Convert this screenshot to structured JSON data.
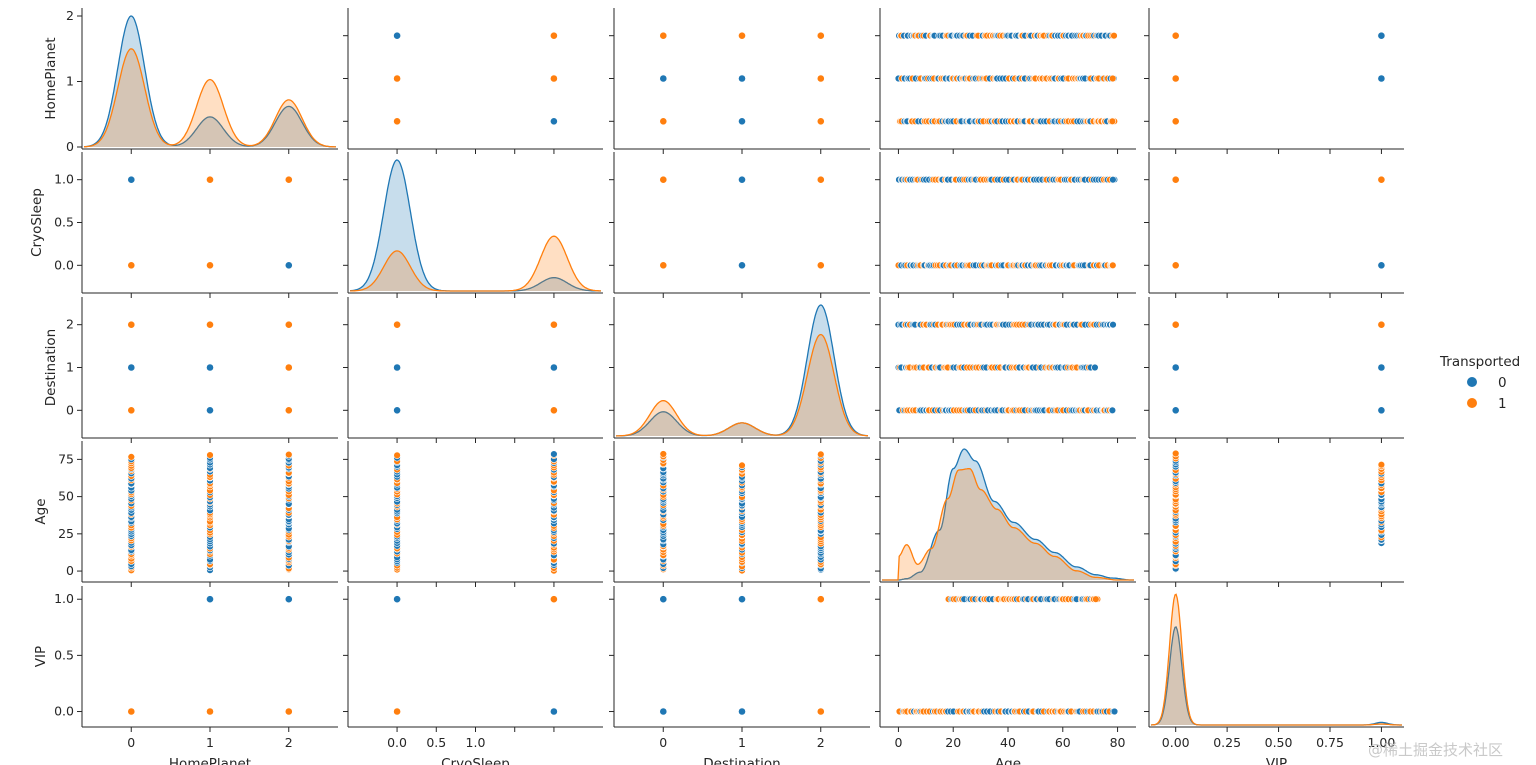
{
  "chart_data": {
    "type": "pairplot",
    "variables": [
      "HomePlanet",
      "CryoSleep",
      "Destination",
      "Age",
      "VIP"
    ],
    "hue": {
      "title": "Transported",
      "levels": [
        "0",
        "1"
      ],
      "colors": [
        "#1f77b4",
        "#ff7f0e"
      ]
    },
    "axes": {
      "HomePlanet": {
        "lim": [
          -0.6,
          2.6
        ],
        "ticks": [
          0,
          1,
          2
        ],
        "tick_labels": [
          "0",
          "1",
          "2"
        ]
      },
      "CryoSleep": {
        "lim": [
          -0.3,
          1.3
        ],
        "ticks": [
          0,
          0.5,
          1.0
        ],
        "tick_labels": [
          "0.0",
          "0.5",
          "1.0"
        ],
        "x_ticks": [
          0,
          0.25,
          0.5,
          0.75,
          1.0
        ],
        "x_tick_labels": [
          "0.0",
          "0.5",
          "1.0"
        ]
      },
      "Destination": {
        "lim": [
          -0.6,
          2.6
        ],
        "ticks": [
          0,
          1,
          2
        ],
        "tick_labels": [
          "0",
          "1",
          "2"
        ]
      },
      "Age": {
        "lim": [
          -6,
          86
        ],
        "ticks": [
          0,
          25,
          50,
          75
        ],
        "tick_labels": [
          "0",
          "25",
          "50",
          "75"
        ],
        "x_ticks": [
          0,
          20,
          40,
          60,
          80
        ],
        "x_tick_labels": [
          "0",
          "20",
          "40",
          "60",
          "80"
        ]
      },
      "VIP": {
        "lim": [
          -0.12,
          1.1
        ],
        "ticks": [
          0,
          0.5,
          1.0
        ],
        "tick_labels": [
          "0.0",
          "0.5",
          "1.0"
        ],
        "x_ticks": [
          0,
          0.25,
          0.5,
          0.75,
          1.0
        ],
        "x_tick_labels": [
          "0.00",
          "0.25",
          "0.50",
          "0.75",
          "1.00"
        ]
      }
    },
    "diagonal_kde": {
      "HomePlanet": {
        "0": [
          [
            0,
            2.0
          ],
          [
            1,
            0.46
          ],
          [
            2,
            0.62
          ]
        ],
        "1": [
          [
            0,
            1.5
          ],
          [
            1,
            1.03
          ],
          [
            2,
            0.72
          ]
        ]
      },
      "CryoSleep": {
        "0": [
          [
            0,
            0.98
          ],
          [
            1,
            0.1
          ]
        ],
        "1": [
          [
            0,
            0.3
          ],
          [
            1,
            0.41
          ]
        ]
      },
      "Destination": {
        "0": [
          [
            0,
            0.37
          ],
          [
            1,
            0.2
          ],
          [
            2,
            2.0
          ]
        ],
        "1": [
          [
            0,
            0.54
          ],
          [
            1,
            0.2
          ],
          [
            2,
            1.55
          ]
        ]
      },
      "Age": {
        "0": [
          [
            0,
            0.0
          ],
          [
            3,
            0.01
          ],
          [
            8,
            0.06
          ],
          [
            15,
            0.38
          ],
          [
            20,
            0.85
          ],
          [
            24,
            1.0
          ],
          [
            28,
            0.91
          ],
          [
            35,
            0.6
          ],
          [
            42,
            0.44
          ],
          [
            50,
            0.31
          ],
          [
            57,
            0.21
          ],
          [
            65,
            0.1
          ],
          [
            72,
            0.04
          ],
          [
            78,
            0.015
          ],
          [
            85,
            0.0
          ]
        ],
        "1": [
          [
            0,
            0.18
          ],
          [
            3,
            0.27
          ],
          [
            7,
            0.12
          ],
          [
            12,
            0.24
          ],
          [
            18,
            0.62
          ],
          [
            22,
            0.84
          ],
          [
            26,
            0.85
          ],
          [
            30,
            0.69
          ],
          [
            36,
            0.54
          ],
          [
            42,
            0.4
          ],
          [
            50,
            0.28
          ],
          [
            57,
            0.18
          ],
          [
            65,
            0.07
          ],
          [
            72,
            0.02
          ],
          [
            80,
            0.0
          ]
        ]
      },
      "VIP": {
        "0": [
          [
            0,
            0.75
          ],
          [
            1,
            0.02
          ]
        ],
        "1": [
          [
            0,
            1.0
          ],
          [
            1,
            0.008
          ]
        ]
      }
    },
    "scatter": {
      "categorical_pairs": [
        {
          "x": "CryoSleep",
          "y": "HomePlanet",
          "0": [
            [
              0,
              0
            ],
            [
              0,
              1
            ],
            [
              0,
              2
            ],
            [
              1,
              0
            ]
          ],
          "1": [
            [
              0,
              0
            ],
            [
              0,
              1
            ],
            [
              1,
              1
            ],
            [
              1,
              2
            ]
          ]
        },
        {
          "x": "Destination",
          "y": "HomePlanet",
          "0": [
            [
              0,
              1
            ],
            [
              1,
              0
            ],
            [
              1,
              1
            ],
            [
              2,
              0
            ],
            [
              2,
              1
            ],
            [
              2,
              2
            ]
          ],
          "1": [
            [
              0,
              0
            ],
            [
              0,
              2
            ],
            [
              1,
              2
            ],
            [
              2,
              0
            ],
            [
              2,
              1
            ],
            [
              2,
              2
            ]
          ]
        },
        {
          "x": "VIP",
          "y": "HomePlanet",
          "0": [
            [
              1,
              1
            ],
            [
              1,
              2
            ]
          ],
          "1": [
            [
              0,
              0
            ],
            [
              0,
              1
            ],
            [
              0,
              2
            ]
          ]
        },
        {
          "x": "HomePlanet",
          "y": "CryoSleep",
          "0": [
            [
              0,
              1
            ],
            [
              2,
              0
            ]
          ],
          "1": [
            [
              0,
              0
            ],
            [
              1,
              0
            ],
            [
              1,
              1
            ],
            [
              2,
              1
            ]
          ]
        },
        {
          "x": "Destination",
          "y": "CryoSleep",
          "0": [
            [
              1,
              0
            ],
            [
              1,
              1
            ]
          ],
          "1": [
            [
              0,
              0
            ],
            [
              0,
              1
            ],
            [
              2,
              0
            ],
            [
              2,
              1
            ]
          ]
        },
        {
          "x": "VIP",
          "y": "CryoSleep",
          "0": [
            [
              1,
              0
            ]
          ],
          "1": [
            [
              0,
              0
            ],
            [
              0,
              1
            ],
            [
              1,
              1
            ]
          ]
        },
        {
          "x": "HomePlanet",
          "y": "Destination",
          "0": [
            [
              0,
              1
            ],
            [
              1,
              0
            ],
            [
              1,
              1
            ]
          ],
          "1": [
            [
              0,
              0
            ],
            [
              0,
              2
            ],
            [
              1,
              2
            ],
            [
              2,
              0
            ],
            [
              2,
              1
            ],
            [
              2,
              2
            ]
          ]
        },
        {
          "x": "CryoSleep",
          "y": "Destination",
          "0": [
            [
              0,
              0
            ],
            [
              0,
              1
            ],
            [
              1,
              1
            ]
          ],
          "1": [
            [
              0,
              2
            ],
            [
              1,
              0
            ],
            [
              1,
              2
            ]
          ]
        },
        {
          "x": "VIP",
          "y": "Destination",
          "0": [
            [
              1,
              0
            ],
            [
              1,
              1
            ],
            [
              0,
              1
            ],
            [
              0,
              0
            ]
          ],
          "1": [
            [
              0,
              2
            ],
            [
              1,
              2
            ]
          ]
        },
        {
          "x": "HomePlanet",
          "y": "VIP",
          "0": [
            [
              1,
              1
            ],
            [
              2,
              1
            ]
          ],
          "1": [
            [
              0,
              0
            ],
            [
              1,
              0
            ],
            [
              2,
              0
            ]
          ]
        },
        {
          "x": "CryoSleep",
          "y": "VIP",
          "0": [
            [
              0,
              1
            ],
            [
              1,
              0
            ]
          ],
          "1": [
            [
              0,
              0
            ],
            [
              1,
              1
            ]
          ]
        },
        {
          "x": "Destination",
          "y": "VIP",
          "0": [
            [
              0,
              0
            ],
            [
              0,
              1
            ],
            [
              1,
              0
            ],
            [
              1,
              1
            ]
          ],
          "1": [
            [
              2,
              0
            ],
            [
              2,
              1
            ]
          ]
        }
      ],
      "age_strips": {
        "row_categorical_vs_age": [
          {
            "y": "HomePlanet",
            "level": 0,
            "range": [
              0,
              79
            ]
          },
          {
            "y": "HomePlanet",
            "level": 1,
            "range": [
              0,
              79
            ]
          },
          {
            "y": "HomePlanet",
            "level": 2,
            "range": [
              0,
              79
            ]
          },
          {
            "y": "CryoSleep",
            "level": 0,
            "range": [
              0,
              79
            ]
          },
          {
            "y": "CryoSleep",
            "level": 1,
            "range": [
              0,
              79
            ]
          },
          {
            "y": "Destination",
            "level": 0,
            "range": [
              0,
              79
            ]
          },
          {
            "y": "Destination",
            "level": 1,
            "range": [
              0,
              72
            ]
          },
          {
            "y": "Destination",
            "level": 2,
            "range": [
              0,
              79
            ]
          },
          {
            "y": "VIP",
            "level": 0,
            "range": [
              0,
              79
            ]
          },
          {
            "y": "VIP",
            "level": 1,
            "range": [
              18,
              73
            ]
          }
        ]
      }
    }
  },
  "legend": {
    "title": "Transported",
    "items": [
      {
        "label": "0",
        "color": "#1f77b4"
      },
      {
        "label": "1",
        "color": "#ff7f0e"
      }
    ]
  },
  "watermark": "@稀土掘金技术社区"
}
